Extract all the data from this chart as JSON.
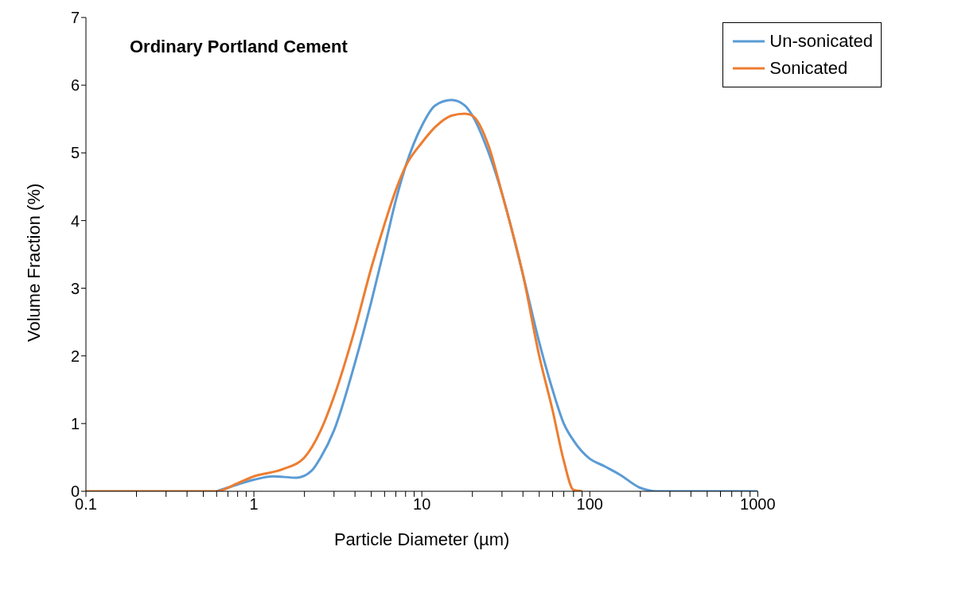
{
  "chart_data": {
    "type": "line",
    "title": "Ordinary Portland Cement",
    "xlabel": "Particle Diameter (µm)",
    "ylabel": "Volume Fraction (%)",
    "series": [
      {
        "name": "Un-sonicated",
        "color": "#5b9bd5",
        "x": [
          0.6,
          0.8,
          1,
          1.3,
          1.8,
          2.2,
          2.5,
          3,
          4,
          5,
          6,
          7,
          8,
          10,
          12,
          15,
          18,
          20,
          25,
          30,
          40,
          50,
          60,
          70,
          80,
          100,
          120,
          150,
          200,
          250,
          400,
          1000
        ],
        "values": [
          0,
          0.1,
          0.17,
          0.22,
          0.2,
          0.3,
          0.5,
          0.9,
          1.9,
          2.8,
          3.6,
          4.3,
          4.8,
          5.4,
          5.7,
          5.78,
          5.7,
          5.55,
          5.0,
          4.4,
          3.2,
          2.2,
          1.5,
          1.0,
          0.75,
          0.48,
          0.38,
          0.25,
          0.05,
          0,
          0,
          0
        ]
      },
      {
        "name": "Sonicated",
        "color": "#ed7d31",
        "x": [
          0.1,
          0.3,
          0.6,
          0.8,
          1,
          1.5,
          2,
          2.5,
          3,
          4,
          5,
          6,
          7,
          8,
          10,
          12,
          15,
          18,
          20,
          25,
          30,
          40,
          50,
          60,
          70,
          80,
          90
        ],
        "values": [
          0,
          0,
          0,
          0.12,
          0.22,
          0.33,
          0.5,
          0.9,
          1.4,
          2.4,
          3.3,
          3.95,
          4.45,
          4.8,
          5.15,
          5.38,
          5.55,
          5.58,
          5.55,
          5.1,
          4.4,
          3.2,
          2.0,
          1.2,
          0.45,
          0.02,
          0
        ]
      }
    ],
    "xlim": [
      0.1,
      1000
    ],
    "xticks": [
      0.1,
      {
        "value": 0.2,
        "label": null
      },
      {
        "value": 0.3,
        "label": null
      },
      {
        "value": 0.4,
        "label": null
      },
      {
        "value": 0.5,
        "label": null
      },
      {
        "value": 0.6,
        "label": null
      },
      {
        "value": 0.7,
        "label": null
      },
      {
        "value": 0.8,
        "label": null
      },
      {
        "value": 0.9,
        "label": null
      },
      1,
      {
        "value": 2,
        "label": null
      },
      {
        "value": 3,
        "label": null
      },
      {
        "value": 4,
        "label": null
      },
      {
        "value": 5,
        "label": null
      },
      {
        "value": 6,
        "label": null
      },
      {
        "value": 7,
        "label": null
      },
      {
        "value": 8,
        "label": null
      },
      {
        "value": 9,
        "label": null
      },
      10,
      {
        "value": 20,
        "label": null
      },
      {
        "value": 30,
        "label": null
      },
      {
        "value": 40,
        "label": null
      },
      {
        "value": 50,
        "label": null
      },
      {
        "value": 60,
        "label": null
      },
      {
        "value": 70,
        "label": null
      },
      {
        "value": 80,
        "label": null
      },
      {
        "value": 90,
        "label": null
      },
      100,
      {
        "value": 200,
        "label": null
      },
      {
        "value": 300,
        "label": null
      },
      {
        "value": 400,
        "label": null
      },
      {
        "value": 500,
        "label": null
      },
      {
        "value": 600,
        "label": null
      },
      {
        "value": 700,
        "label": null
      },
      {
        "value": 800,
        "label": null
      },
      {
        "value": 900,
        "label": null
      },
      1000
    ],
    "ylim": [
      0,
      7
    ],
    "yticks": [
      0,
      1,
      2,
      3,
      4,
      5,
      6,
      7
    ],
    "log": "x",
    "grid": false,
    "legend": "top right",
    "marker": "none",
    "line_style": "solid"
  }
}
